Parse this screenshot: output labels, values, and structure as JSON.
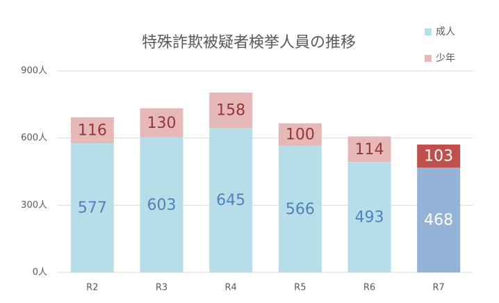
{
  "chart_data": {
    "type": "stacked-bar",
    "title": "特殊詐欺被疑者検挙人員の推移",
    "categories": [
      "R2",
      "R3",
      "R4",
      "R5",
      "R6",
      "R7"
    ],
    "series": [
      {
        "name": "成人",
        "color": "#b7dee8",
        "colors": [
          "#b7dee8",
          "#b7dee8",
          "#b7dee8",
          "#b7dee8",
          "#b7dee8",
          "#95b3d7"
        ],
        "label_colors": [
          "#4f81bd",
          "#4f81bd",
          "#4f81bd",
          "#4f81bd",
          "#4f81bd",
          "#ffffff"
        ],
        "values": [
          577,
          603,
          645,
          566,
          493,
          468
        ]
      },
      {
        "name": "少年",
        "color": "#e6b9b8",
        "colors": [
          "#e6b9b8",
          "#e6b9b8",
          "#e6b9b8",
          "#e6b9b8",
          "#e6b9b8",
          "#c0504d"
        ],
        "label_colors": [
          "#953735",
          "#953735",
          "#953735",
          "#953735",
          "#953735",
          "#ffffff"
        ],
        "values": [
          116,
          130,
          158,
          100,
          114,
          103
        ]
      }
    ],
    "ylim": [
      0,
      900
    ],
    "yticks": [
      {
        "value": 0,
        "label": "0人"
      },
      {
        "value": 300,
        "label": "300人"
      },
      {
        "value": 600,
        "label": "600人"
      },
      {
        "value": 900,
        "label": "900人"
      }
    ],
    "grid": true,
    "legend": "top-right"
  }
}
